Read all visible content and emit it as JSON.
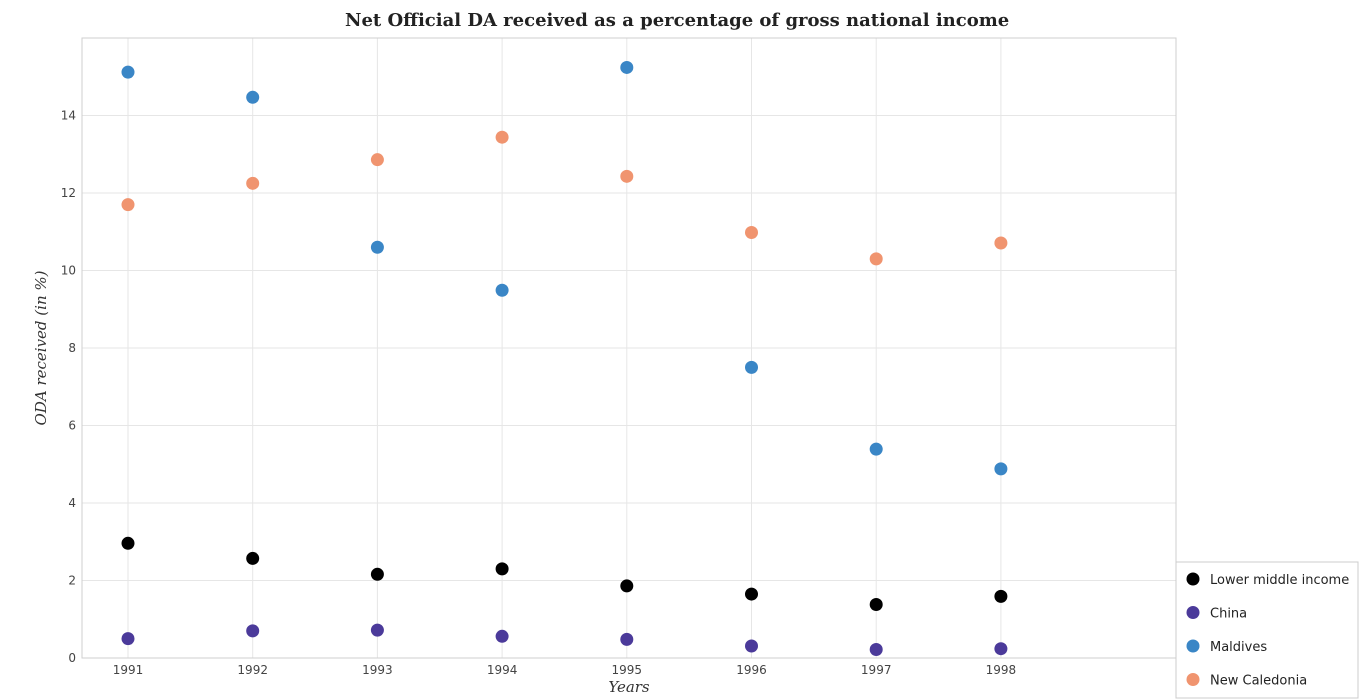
{
  "chart_data": {
    "type": "scatter",
    "title": "Net Official DA received as a percentage of gross national income",
    "xlabel": "Years",
    "ylabel": "ODA received (in %)",
    "categories": [
      "1991",
      "1992",
      "1993",
      "1994",
      "1995",
      "1996",
      "1997",
      "1998"
    ],
    "y_ticks": [
      "0",
      "2",
      "4",
      "6",
      "8",
      "10",
      "12",
      "14"
    ],
    "ylim": [
      0,
      16
    ],
    "grid": true,
    "legend_position": "bottom-right",
    "series": [
      {
        "name": "Lower middle income",
        "color": "#000000",
        "values": [
          2.96,
          2.57,
          2.16,
          2.3,
          1.86,
          1.65,
          1.38,
          1.59
        ]
      },
      {
        "name": "China",
        "color": "#4b3a9a",
        "values": [
          0.5,
          0.7,
          0.72,
          0.56,
          0.48,
          0.31,
          0.22,
          0.24
        ]
      },
      {
        "name": "Maldives",
        "color": "#3a86c6",
        "values": [
          15.12,
          14.47,
          10.6,
          9.49,
          15.24,
          7.5,
          5.39,
          4.88
        ]
      },
      {
        "name": "New Caledonia",
        "color": "#f0946f",
        "values": [
          11.7,
          12.25,
          12.86,
          13.44,
          12.43,
          10.98,
          10.3,
          10.71
        ]
      }
    ]
  }
}
